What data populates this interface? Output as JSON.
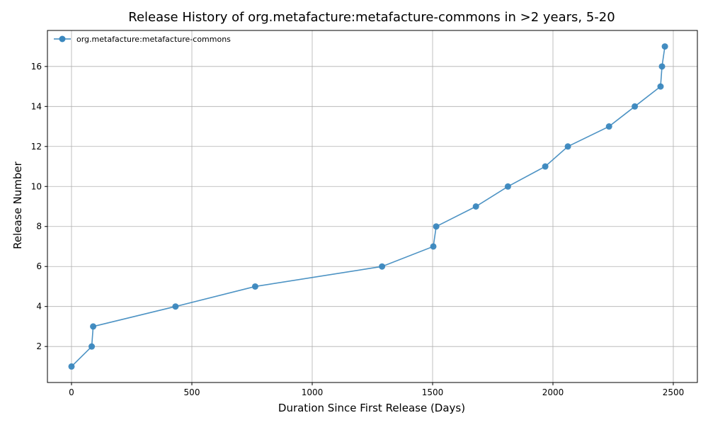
{
  "chart_data": {
    "type": "line",
    "title": "Release History of org.metafacture:metafacture-commons in >2 years, 5-20",
    "xlabel": "Duration Since First Release (Days)",
    "ylabel": "Release Number",
    "xlim": [
      -100,
      2600
    ],
    "ylim": [
      0.2,
      17.8
    ],
    "xticks": [
      0,
      500,
      1000,
      1500,
      2000,
      2500
    ],
    "yticks": [
      2,
      4,
      6,
      8,
      10,
      12,
      14,
      16
    ],
    "grid": true,
    "legend_position": "top-left",
    "series": [
      {
        "name": "org.metafacture:metafacture-commons",
        "color": "#3a87be",
        "marker": "circle",
        "x": [
          0,
          84,
          90,
          432,
          763,
          1290,
          1503,
          1515,
          1680,
          1813,
          1968,
          2062,
          2233,
          2340,
          2447,
          2453,
          2465
        ],
        "y": [
          1,
          2,
          3,
          4,
          5,
          6,
          7,
          8,
          9,
          10,
          11,
          12,
          13,
          14,
          15,
          16,
          17
        ]
      }
    ]
  }
}
